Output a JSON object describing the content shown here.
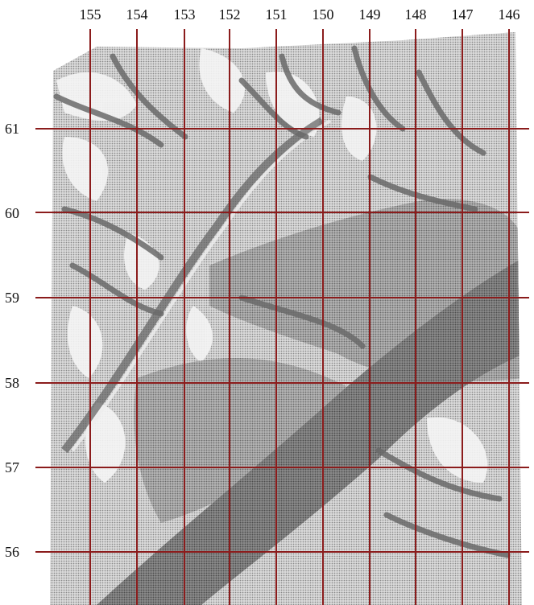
{
  "grid": {
    "x_labels": [
      "155",
      "154",
      "153",
      "152",
      "151",
      "150",
      "149",
      "148",
      "147",
      "146"
    ],
    "y_labels": [
      "61",
      "60",
      "59",
      "58",
      "57",
      "56"
    ],
    "line_color": "#8b1c1c"
  },
  "colors": {
    "background": "#ffffff",
    "terrain_light": "#c9c9c9",
    "terrain_mid": "#9a9a9a",
    "terrain_dark": "#6e6e6e",
    "channel": "#5a5a5a"
  }
}
